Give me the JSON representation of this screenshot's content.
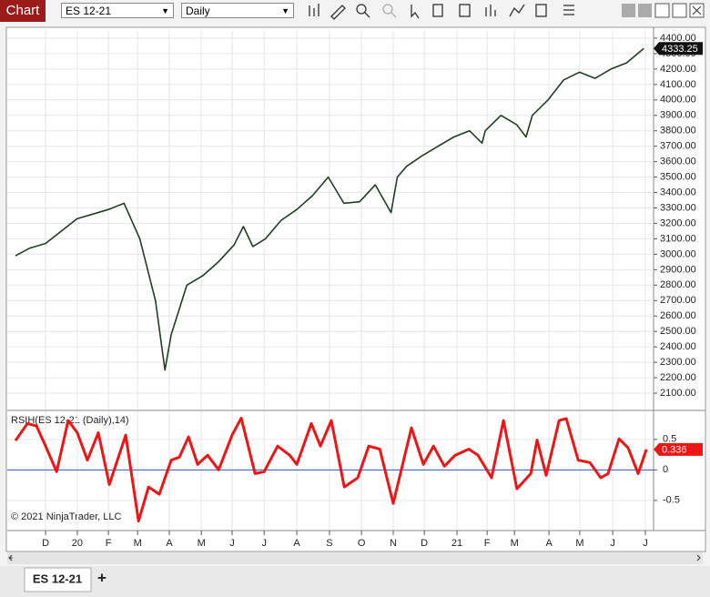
{
  "app": {
    "tab": "Chart",
    "instrument": "ES 12-21",
    "interval": "Daily",
    "bottom_tab": "ES 12-21",
    "add_tab": "+"
  },
  "chart_data": [
    {
      "type": "line",
      "grid": true,
      "xlim": [
        -1.22,
        19.36
      ],
      "ylim": [
        1994,
        4447
      ],
      "yticks": [
        {
          "value": 2100,
          "label": "2100.00"
        },
        {
          "value": 2200,
          "label": "2200.00"
        },
        {
          "value": 2300,
          "label": "2300.00"
        },
        {
          "value": 2400,
          "label": "2400.00"
        },
        {
          "value": 2500,
          "label": "2500.00"
        },
        {
          "value": 2600,
          "label": "2600.00"
        },
        {
          "value": 2700,
          "label": "2700.00"
        },
        {
          "value": 2800,
          "label": "2800.00"
        },
        {
          "value": 2900,
          "label": "2900.00"
        },
        {
          "value": 3000,
          "label": "3000.00"
        },
        {
          "value": 3100,
          "label": "3100.00"
        },
        {
          "value": 3200,
          "label": "3200.00"
        },
        {
          "value": 3300,
          "label": "3300.00"
        },
        {
          "value": 3400,
          "label": "3400.00"
        },
        {
          "value": 3500,
          "label": "3500.00"
        },
        {
          "value": 3600,
          "label": "3600.00"
        },
        {
          "value": 3700,
          "label": "3700.00"
        },
        {
          "value": 3800,
          "label": "3800.00"
        },
        {
          "value": 3900,
          "label": "3900.00"
        },
        {
          "value": 4000,
          "label": "4000.00"
        },
        {
          "value": 4100,
          "label": "4100.00"
        },
        {
          "value": 4200,
          "label": "4200.00"
        },
        {
          "value": 4300,
          "label": "4300.00"
        },
        {
          "value": 4400,
          "label": "4400.00"
        }
      ],
      "series": [
        {
          "color": "#1f3f1f",
          "x": [
            -0.96,
            -0.5,
            0,
            0.5,
            1,
            1.5,
            2,
            2.5,
            3,
            3.5,
            3.8,
            4,
            4.5,
            5,
            5.5,
            6,
            6.3,
            6.6,
            7,
            7.5,
            8,
            8.5,
            9,
            9.5,
            10,
            10.5,
            11,
            11.2,
            11.5,
            12,
            12.5,
            13,
            13.5,
            13.9,
            14,
            14.5,
            15,
            15.3,
            15.5,
            16,
            16.5,
            17,
            17.5,
            18,
            18.5,
            19.05
          ],
          "values": [
            2990,
            3040,
            3070,
            3150,
            3230,
            3260,
            3290,
            3330,
            3100,
            2700,
            2250,
            2480,
            2800,
            2860,
            2950,
            3060,
            3180,
            3050,
            3100,
            3220,
            3290,
            3380,
            3500,
            3330,
            3340,
            3450,
            3270,
            3500,
            3570,
            3640,
            3700,
            3760,
            3800,
            3720,
            3800,
            3900,
            3840,
            3760,
            3900,
            4000,
            4130,
            4180,
            4140,
            4200,
            4240,
            4333.25
          ]
        }
      ]
    },
    {
      "type": "line",
      "grid": true,
      "title": "RSIH(ES 12-21 (Daily),14)",
      "annotation": "© 2021 NinjaTrader, LLC",
      "xlim": [
        -1.22,
        19.36
      ],
      "ylim": [
        -0.98,
        0.96
      ],
      "yticks": [
        -0.5,
        0,
        0.5
      ],
      "reference_line": {
        "value": 0,
        "color": "#3355cc"
      },
      "xticks": [
        {
          "value": 0,
          "label": "D"
        },
        {
          "value": 1.01,
          "label": "20"
        },
        {
          "value": 2.0,
          "label": "F"
        },
        {
          "value": 2.93,
          "label": "M"
        },
        {
          "value": 3.94,
          "label": "A"
        },
        {
          "value": 4.96,
          "label": "M"
        },
        {
          "value": 5.94,
          "label": "J"
        },
        {
          "value": 6.96,
          "label": "J"
        },
        {
          "value": 8.0,
          "label": "A"
        },
        {
          "value": 9.04,
          "label": "S"
        },
        {
          "value": 10.06,
          "label": "O"
        },
        {
          "value": 11.07,
          "label": "N"
        },
        {
          "value": 12.06,
          "label": "D"
        },
        {
          "value": 13.1,
          "label": "21"
        },
        {
          "value": 14.06,
          "label": "F"
        },
        {
          "value": 14.93,
          "label": "M"
        },
        {
          "value": 16.03,
          "label": "A"
        },
        {
          "value": 17.01,
          "label": "M"
        },
        {
          "value": 18.06,
          "label": "J"
        },
        {
          "value": 19.1,
          "label": "J"
        }
      ],
      "series": [
        {
          "color": "#ee1515",
          "x": [
            -0.96,
            -0.58,
            -0.29,
            0,
            0.35,
            0.72,
            1.01,
            1.33,
            1.68,
            2.03,
            2.55,
            2.96,
            3.28,
            3.62,
            4.0,
            4.26,
            4.55,
            4.84,
            5.16,
            5.51,
            5.94,
            6.23,
            6.67,
            6.96,
            7.39,
            7.77,
            8.0,
            8.46,
            8.75,
            9.1,
            9.51,
            9.94,
            10.29,
            10.64,
            11.07,
            11.3,
            11.65,
            12.03,
            12.35,
            12.7,
            13.04,
            13.48,
            13.77,
            14.2,
            14.58,
            15.01,
            15.45,
            15.65,
            15.94,
            16.35,
            16.58,
            16.96,
            17.33,
            17.68,
            17.91,
            18.26,
            18.55,
            18.87,
            19.13
          ],
          "values": [
            0.48,
            0.76,
            0.72,
            0.39,
            -0.03,
            0.81,
            0.61,
            0.16,
            0.61,
            -0.24,
            0.57,
            -0.84,
            -0.28,
            -0.4,
            0.16,
            0.21,
            0.54,
            0.09,
            0.24,
            0.0,
            0.57,
            0.85,
            -0.06,
            -0.03,
            0.39,
            0.24,
            0.09,
            0.76,
            0.39,
            0.81,
            -0.28,
            -0.13,
            0.39,
            0.34,
            -0.55,
            -0.06,
            0.69,
            0.09,
            0.39,
            0.06,
            0.24,
            0.34,
            0.24,
            -0.13,
            0.81,
            -0.31,
            -0.06,
            0.49,
            -0.09,
            0.81,
            0.84,
            0.16,
            0.12,
            -0.13,
            -0.06,
            0.51,
            0.36,
            -0.06,
            0.336
          ]
        }
      ]
    }
  ]
}
